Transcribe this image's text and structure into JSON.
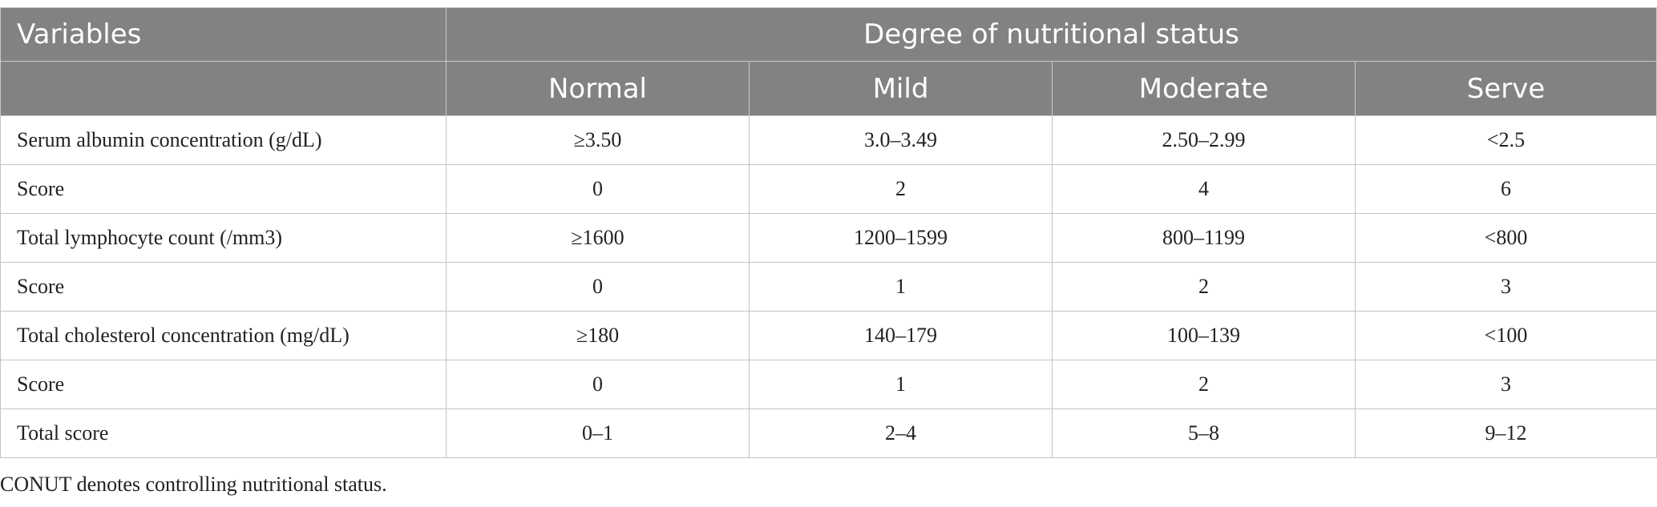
{
  "header": {
    "variables": "Variables",
    "group": "Degree of nutritional status",
    "columns": [
      "Normal",
      "Mild",
      "Moderate",
      "Serve"
    ]
  },
  "rows": [
    {
      "label": "Serum albumin concentration (g/dL)",
      "values": [
        "≥3.50",
        "3.0–3.49",
        "2.50–2.99",
        "<2.5"
      ]
    },
    {
      "label": "Score",
      "values": [
        "0",
        "2",
        "4",
        "6"
      ]
    },
    {
      "label": "Total lymphocyte count (/mm3)",
      "values": [
        "≥1600",
        "1200–1599",
        "800–1199",
        "<800"
      ]
    },
    {
      "label": "Score",
      "values": [
        "0",
        "1",
        "2",
        "3"
      ]
    },
    {
      "label": "Total cholesterol concentration (mg/dL)",
      "values": [
        "≥180",
        "140–179",
        "100–139",
        "<100"
      ]
    },
    {
      "label": "Score",
      "values": [
        "0",
        "1",
        "2",
        "3"
      ]
    },
    {
      "label": "Total score",
      "values": [
        "0–1",
        "2–4",
        "5–8",
        "9–12"
      ]
    }
  ],
  "footnote": "CONUT denotes controlling nutritional status."
}
